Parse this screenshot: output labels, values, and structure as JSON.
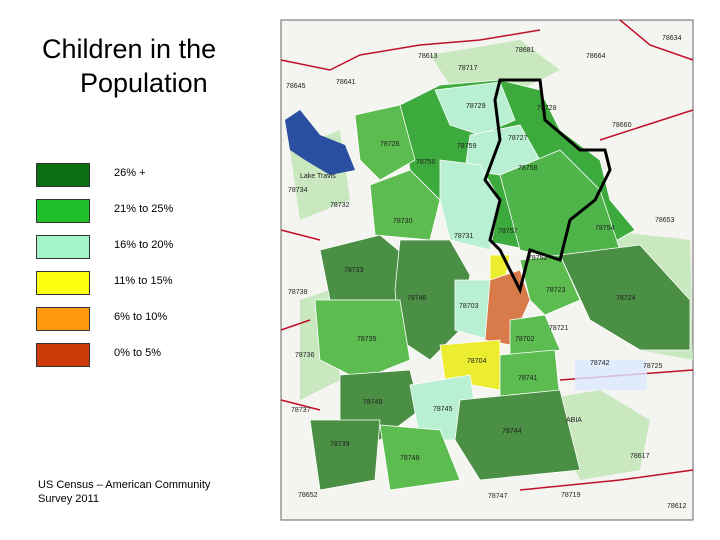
{
  "title_lines": [
    "Children in the",
    "Population"
  ],
  "legend": [
    {
      "label": "26% +",
      "color": "#0a6e12"
    },
    {
      "label": "21% to 25%",
      "color": "#1fbf2a"
    },
    {
      "label": "16% to 20%",
      "color": "#a3f5c8"
    },
    {
      "label": "11% to 15%",
      "color": "#ffff10"
    },
    {
      "label": "6% to 10%",
      "color": "#ff9a10"
    },
    {
      "label": "0% to 5%",
      "color": "#cc3a0a"
    }
  ],
  "source_lines": [
    "US Census – American Community",
    "Survey 2011"
  ],
  "map": {
    "places": [
      "Lake Travis",
      "ABIA"
    ],
    "zips": [
      "78634",
      "78681",
      "78664",
      "78613",
      "78717",
      "78645",
      "78641",
      "78729",
      "78728",
      "78660",
      "78727",
      "78726",
      "78750",
      "78734",
      "78732",
      "78759",
      "78758",
      "78754",
      "78653",
      "78730",
      "78731",
      "78757",
      "78752",
      "78738",
      "78733",
      "78746",
      "78703",
      "78723",
      "78724",
      "78735",
      "78721",
      "78702",
      "78736",
      "78742",
      "78725",
      "78704",
      "78741",
      "78737",
      "78749",
      "78745",
      "78739",
      "78748",
      "78744",
      "78617",
      "78652",
      "78747",
      "78719",
      "78612"
    ]
  }
}
